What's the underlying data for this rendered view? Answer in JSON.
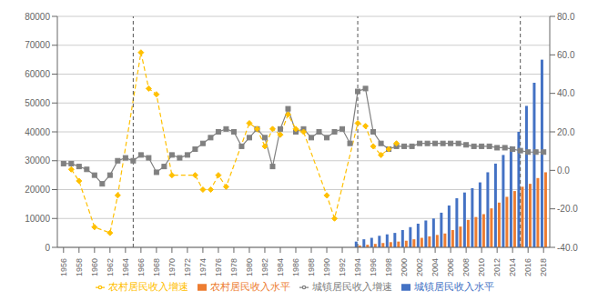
{
  "chart_data": {
    "type": "bar",
    "x": [
      1956,
      1957,
      1958,
      1959,
      1960,
      1961,
      1962,
      1963,
      1964,
      1965,
      1966,
      1967,
      1968,
      1969,
      1970,
      1971,
      1972,
      1973,
      1974,
      1975,
      1976,
      1977,
      1978,
      1979,
      1980,
      1981,
      1982,
      1983,
      1984,
      1985,
      1986,
      1987,
      1988,
      1989,
      1990,
      1991,
      1992,
      1993,
      1994,
      1995,
      1996,
      1997,
      1998,
      1999,
      2000,
      2001,
      2002,
      2003,
      2004,
      2005,
      2006,
      2007,
      2008,
      2009,
      2010,
      2011,
      2012,
      2013,
      2014,
      2015,
      2016,
      2017,
      2018
    ],
    "xlim": [
      1955.2,
      2018.8
    ],
    "xticks": [
      1956,
      1958,
      1960,
      1962,
      1964,
      1966,
      1968,
      1970,
      1972,
      1974,
      1976,
      1978,
      1980,
      1982,
      1984,
      1986,
      1988,
      1990,
      1992,
      1994,
      1996,
      1998,
      2000,
      2002,
      2004,
      2006,
      2008,
      2010,
      2012,
      2014,
      2016,
      2018
    ],
    "ylim": [
      0,
      80000
    ],
    "yticks": [
      0,
      10000,
      20000,
      30000,
      40000,
      50000,
      60000,
      70000,
      80000
    ],
    "y2lim": [
      -40,
      80
    ],
    "y2ticks": [
      {
        "value": -40,
        "label": "-40.0"
      },
      {
        "value": -20,
        "label": "-20.0"
      },
      {
        "value": 0,
        "label": "0.0"
      },
      {
        "value": 20,
        "label": "20.0"
      },
      {
        "value": 40,
        "label": "40.0"
      },
      {
        "value": 60,
        "label": "60.0"
      },
      {
        "value": 80,
        "label": "80.0"
      }
    ],
    "grid": true,
    "legend": "bottom",
    "vlines": [
      1965,
      1994,
      2015
    ],
    "series": [
      {
        "name": "城镇居民收入水平",
        "type": "bar",
        "color": "#4472C4",
        "values": [
          null,
          null,
          null,
          null,
          null,
          null,
          null,
          null,
          null,
          null,
          null,
          null,
          null,
          null,
          null,
          null,
          null,
          null,
          null,
          null,
          null,
          null,
          null,
          null,
          null,
          null,
          null,
          null,
          null,
          null,
          null,
          null,
          null,
          null,
          null,
          null,
          null,
          null,
          2000,
          2800,
          3300,
          4000,
          4500,
          5000,
          6000,
          7000,
          8200,
          9300,
          10000,
          12000,
          14500,
          17000,
          19000,
          20500,
          22500,
          26000,
          29000,
          32000,
          35000,
          40000,
          49000,
          57000,
          65000
        ]
      },
      {
        "name": "农村居民收入水平",
        "type": "bar",
        "color": "#ED7D31",
        "values": [
          null,
          null,
          null,
          null,
          null,
          null,
          null,
          null,
          null,
          null,
          null,
          null,
          null,
          null,
          null,
          null,
          null,
          null,
          null,
          null,
          null,
          null,
          null,
          null,
          null,
          null,
          null,
          null,
          null,
          null,
          null,
          null,
          null,
          null,
          null,
          null,
          null,
          null,
          600,
          900,
          1200,
          1500,
          1800,
          2000,
          2300,
          2800,
          3300,
          3800,
          4300,
          4800,
          6000,
          7200,
          9500,
          10500,
          11500,
          13500,
          15500,
          17500,
          19500,
          21000,
          22000,
          24000,
          26000
        ]
      },
      {
        "name": "城镇居民收入增速",
        "type": "line",
        "color": "#808080",
        "marker": "square",
        "line_style": "solid",
        "values": [
          29000,
          29000,
          28000,
          27000,
          25000,
          22000,
          25000,
          30000,
          31000,
          30000,
          32000,
          31000,
          26000,
          28000,
          32000,
          31000,
          32000,
          34000,
          36000,
          38000,
          40000,
          41000,
          40000,
          35000,
          38000,
          41000,
          38000,
          28000,
          41000,
          48000,
          40000,
          41000,
          38000,
          40000,
          38000,
          40000,
          41000,
          36000,
          54000,
          55000,
          40000,
          36000,
          34000,
          35000,
          35000,
          35000,
          36000,
          36000,
          36000,
          36000,
          36000,
          36000,
          35500,
          35000,
          35000,
          35000,
          34500,
          34500,
          34000,
          33500,
          33000,
          33000,
          33000
        ]
      },
      {
        "name": "农村居民收入增速",
        "type": "line",
        "color": "#FFC000",
        "marker": "diamond",
        "line_style": "dashed",
        "values": [
          null,
          27000,
          23000,
          null,
          7000,
          null,
          5000,
          18000,
          null,
          null,
          67500,
          55000,
          53000,
          null,
          25000,
          null,
          null,
          25000,
          20000,
          20000,
          25000,
          21000,
          null,
          null,
          43000,
          41000,
          35000,
          41000,
          39000,
          46000,
          41000,
          40000,
          null,
          null,
          18000,
          10000,
          null,
          null,
          43000,
          42000,
          35000,
          32000,
          34000,
          36000,
          null,
          null,
          null,
          null,
          null,
          null,
          null,
          null,
          null,
          null,
          null,
          null,
          null,
          null,
          null,
          null,
          null,
          null,
          null
        ]
      }
    ]
  }
}
